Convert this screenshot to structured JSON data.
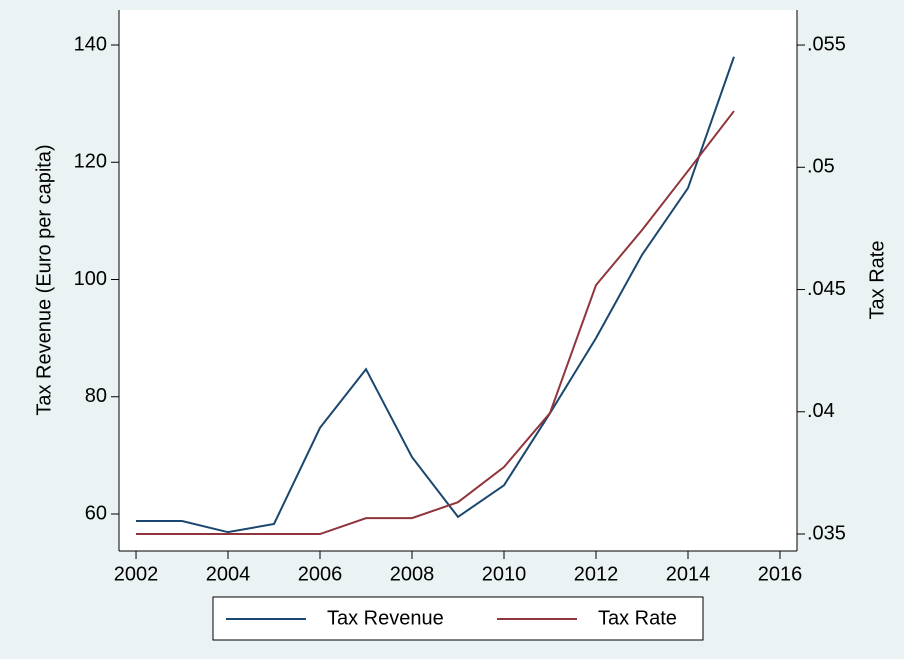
{
  "chart_data": {
    "type": "line",
    "x": [
      2002,
      2003,
      2004,
      2005,
      2006,
      2007,
      2008,
      2009,
      2010,
      2011,
      2012,
      2013,
      2014,
      2015
    ],
    "series": [
      {
        "name": "Tax Revenue",
        "color": "#1a476f",
        "values": [
          58.8,
          58.8,
          56.9,
          58.3,
          74.7,
          84.7,
          69.7,
          59.5,
          64.9,
          77.2,
          90.0,
          104.2,
          115.6,
          138.0
        ]
      },
      {
        "name": "Tax Rate",
        "color": "#90353b",
        "axis": "y2",
        "values": [
          0.035,
          0.035,
          0.035,
          0.035,
          0.035,
          0.03565,
          0.03565,
          0.0363,
          0.03774,
          0.03995,
          0.04518,
          0.04743,
          0.04985,
          0.0523
        ]
      }
    ],
    "y_label": "Tax Revenue (Euro per capita)",
    "y2_label": "Tax Rate",
    "xlim": [
      2001.63,
      2016.37
    ],
    "xticks": [
      2002,
      2004,
      2006,
      2008,
      2010,
      2012,
      2014,
      2016
    ],
    "ylim": [
      55,
      145
    ],
    "yticks": [
      60,
      80,
      100,
      120,
      140
    ],
    "y2lim": [
      0.03462,
      0.0562
    ],
    "y2ticks": [
      {
        "value": 0.035,
        "label": ".035"
      },
      {
        "value": 0.04,
        "label": ".04"
      },
      {
        "value": 0.045,
        "label": ".045"
      },
      {
        "value": 0.05,
        "label": ".05"
      },
      {
        "value": 0.055,
        "label": ".055"
      }
    ],
    "grid": false,
    "legend": "bottom"
  }
}
